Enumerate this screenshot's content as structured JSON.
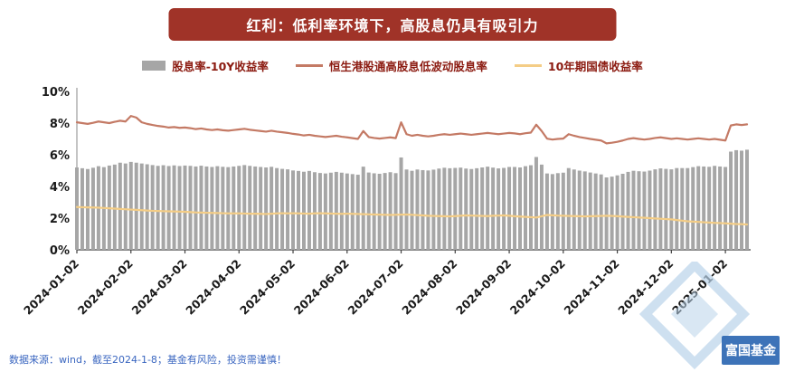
{
  "title": {
    "text": "红利：低利率环境下，高股息仍具有吸引力"
  },
  "footer": {
    "text": "数据来源：wind，截至2024-1-8；基金有风险，投资需谨慎！"
  },
  "watermark": {
    "brand": "富国基金",
    "color": "#2D67B2",
    "diamond_color": "#B9D3EA"
  },
  "colors": {
    "banner": "#A03328",
    "legend_text": "#8B1A10",
    "footer_text": "#3A66C0"
  },
  "chart_data": {
    "type": "combo",
    "ylim": [
      0,
      10
    ],
    "y_tick_labels": [
      "10%",
      "8%",
      "6%",
      "4%",
      "2%",
      "0%"
    ],
    "x_tick_labels": [
      "2024-01-02",
      "2024-02-02",
      "2024-03-02",
      "2024-04-02",
      "2024-05-02",
      "2024-06-02",
      "2024-07-02",
      "2024-08-02",
      "2024-09-02",
      "2024-10-02",
      "2024-11-02",
      "2024-12-02",
      "2025-01-02"
    ],
    "points_per_label": 10,
    "grid": "off",
    "legend_position": "top-center",
    "series": [
      {
        "name": "股息率-10Y收益率",
        "type": "bar",
        "color": "#A6A6A6",
        "values": [
          5.2,
          5.15,
          5.1,
          5.18,
          5.28,
          5.22,
          5.32,
          5.38,
          5.5,
          5.45,
          5.55,
          5.5,
          5.45,
          5.4,
          5.35,
          5.3,
          5.34,
          5.29,
          5.33,
          5.29,
          5.32,
          5.3,
          5.26,
          5.31,
          5.26,
          5.23,
          5.28,
          5.24,
          5.22,
          5.26,
          5.3,
          5.35,
          5.3,
          5.26,
          5.23,
          5.2,
          5.24,
          5.16,
          5.11,
          5.08,
          5.01,
          4.98,
          4.93,
          4.98,
          4.9,
          4.85,
          4.82,
          4.87,
          4.92,
          4.87,
          4.82,
          4.78,
          4.74,
          5.25,
          4.88,
          4.83,
          4.8,
          4.85,
          4.9,
          4.84,
          5.83,
          5.07,
          4.99,
          5.07,
          5.03,
          5.01,
          5.06,
          5.13,
          5.18,
          5.15,
          5.17,
          5.19,
          5.13,
          5.1,
          5.15,
          5.2,
          5.25,
          5.19,
          5.14,
          5.17,
          5.23,
          5.23,
          5.2,
          5.28,
          5.34,
          5.86,
          5.38,
          4.82,
          4.78,
          4.84,
          4.87,
          5.16,
          5.07,
          5.0,
          4.95,
          4.88,
          4.82,
          4.76,
          4.57,
          4.62,
          4.7,
          4.8,
          4.92,
          4.99,
          4.96,
          4.94,
          5.0,
          5.08,
          5.14,
          5.11,
          5.08,
          5.16,
          5.16,
          5.16,
          5.22,
          5.28,
          5.26,
          5.24,
          5.3,
          5.26,
          5.23,
          6.2,
          6.29,
          6.26,
          6.32
        ]
      },
      {
        "name": "恒生港股通高股息低波动股息率",
        "type": "line",
        "color": "#C47A65",
        "values": [
          8.05,
          8.0,
          7.95,
          8.02,
          8.1,
          8.05,
          8.0,
          8.08,
          8.15,
          8.1,
          8.45,
          8.35,
          8.05,
          7.95,
          7.88,
          7.82,
          7.78,
          7.72,
          7.75,
          7.7,
          7.72,
          7.68,
          7.62,
          7.66,
          7.6,
          7.56,
          7.6,
          7.55,
          7.52,
          7.56,
          7.6,
          7.64,
          7.58,
          7.54,
          7.5,
          7.46,
          7.52,
          7.46,
          7.42,
          7.38,
          7.32,
          7.28,
          7.22,
          7.26,
          7.2,
          7.16,
          7.12,
          7.16,
          7.2,
          7.14,
          7.1,
          7.05,
          7.0,
          7.5,
          7.12,
          7.06,
          7.02,
          7.06,
          7.1,
          7.05,
          8.05,
          7.3,
          7.2,
          7.26,
          7.2,
          7.16,
          7.2,
          7.26,
          7.3,
          7.26,
          7.3,
          7.34,
          7.3,
          7.26,
          7.3,
          7.34,
          7.38,
          7.34,
          7.3,
          7.34,
          7.38,
          7.35,
          7.3,
          7.36,
          7.4,
          7.9,
          7.5,
          7.02,
          6.96,
          7.0,
          7.02,
          7.3,
          7.2,
          7.12,
          7.06,
          7.0,
          6.95,
          6.9,
          6.72,
          6.76,
          6.82,
          6.9,
          7.0,
          7.05,
          7.0,
          6.96,
          7.0,
          7.06,
          7.1,
          7.05,
          7.0,
          7.04,
          7.0,
          6.96,
          7.0,
          7.04,
          7.0,
          6.96,
          7.0,
          6.95,
          6.9,
          7.85,
          7.92,
          7.88,
          7.92
        ]
      },
      {
        "name": "10年期国债收益率",
        "type": "line",
        "color": "#F4CD86",
        "values": [
          2.7,
          2.69,
          2.68,
          2.67,
          2.66,
          2.64,
          2.62,
          2.6,
          2.58,
          2.56,
          2.54,
          2.52,
          2.5,
          2.48,
          2.46,
          2.45,
          2.44,
          2.43,
          2.42,
          2.41,
          2.4,
          2.38,
          2.36,
          2.35,
          2.34,
          2.33,
          2.32,
          2.31,
          2.3,
          2.3,
          2.3,
          2.29,
          2.28,
          2.28,
          2.27,
          2.26,
          2.28,
          2.3,
          2.31,
          2.3,
          2.31,
          2.3,
          2.29,
          2.28,
          2.3,
          2.31,
          2.3,
          2.29,
          2.28,
          2.27,
          2.28,
          2.27,
          2.26,
          2.25,
          2.24,
          2.23,
          2.22,
          2.21,
          2.2,
          2.21,
          2.22,
          2.23,
          2.21,
          2.19,
          2.17,
          2.15,
          2.14,
          2.13,
          2.12,
          2.11,
          2.13,
          2.15,
          2.17,
          2.16,
          2.15,
          2.14,
          2.13,
          2.15,
          2.16,
          2.17,
          2.15,
          2.12,
          2.1,
          2.08,
          2.06,
          2.04,
          2.12,
          2.2,
          2.18,
          2.16,
          2.15,
          2.14,
          2.13,
          2.12,
          2.11,
          2.12,
          2.13,
          2.14,
          2.15,
          2.14,
          2.12,
          2.1,
          2.08,
          2.06,
          2.04,
          2.02,
          2.0,
          1.98,
          1.96,
          1.94,
          1.92,
          1.88,
          1.84,
          1.8,
          1.78,
          1.76,
          1.74,
          1.72,
          1.7,
          1.69,
          1.67,
          1.65,
          1.63,
          1.62,
          1.6
        ]
      }
    ]
  }
}
